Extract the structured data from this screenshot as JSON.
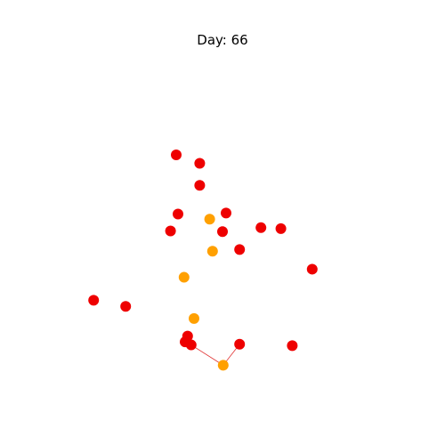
{
  "chart_data": {
    "type": "scatter",
    "title": "Day: 66",
    "xlabel": "",
    "ylabel": "",
    "grid": false,
    "axes_visible": false,
    "colors": {
      "red": "#ee0000",
      "orange": "#ffa000",
      "edge": "#e03030"
    },
    "series": [
      {
        "color": "#ee0000",
        "points": [
          {
            "x": 0.37,
            "y": 0.7
          },
          {
            "x": 0.436,
            "y": 0.675
          },
          {
            "x": 0.436,
            "y": 0.61
          },
          {
            "x": 0.375,
            "y": 0.525
          },
          {
            "x": 0.51,
            "y": 0.528
          },
          {
            "x": 0.354,
            "y": 0.475
          },
          {
            "x": 0.5,
            "y": 0.473
          },
          {
            "x": 0.608,
            "y": 0.485
          },
          {
            "x": 0.664,
            "y": 0.482
          },
          {
            "x": 0.548,
            "y": 0.42
          },
          {
            "x": 0.752,
            "y": 0.362
          },
          {
            "x": 0.138,
            "y": 0.27
          },
          {
            "x": 0.228,
            "y": 0.252
          },
          {
            "x": 0.402,
            "y": 0.164
          },
          {
            "x": 0.395,
            "y": 0.147
          },
          {
            "x": 0.412,
            "y": 0.138
          },
          {
            "x": 0.548,
            "y": 0.14
          },
          {
            "x": 0.696,
            "y": 0.136
          }
        ]
      },
      {
        "color": "#ffa000",
        "points": [
          {
            "x": 0.464,
            "y": 0.51
          },
          {
            "x": 0.472,
            "y": 0.415
          },
          {
            "x": 0.392,
            "y": 0.338
          },
          {
            "x": 0.42,
            "y": 0.216
          },
          {
            "x": 0.502,
            "y": 0.078
          }
        ]
      }
    ],
    "edges": [
      {
        "from": {
          "x": 0.412,
          "y": 0.138
        },
        "to": {
          "x": 0.502,
          "y": 0.078
        }
      },
      {
        "from": {
          "x": 0.502,
          "y": 0.078
        },
        "to": {
          "x": 0.548,
          "y": 0.14
        }
      }
    ],
    "xlim": [
      0,
      1
    ],
    "ylim": [
      0,
      1
    ]
  }
}
